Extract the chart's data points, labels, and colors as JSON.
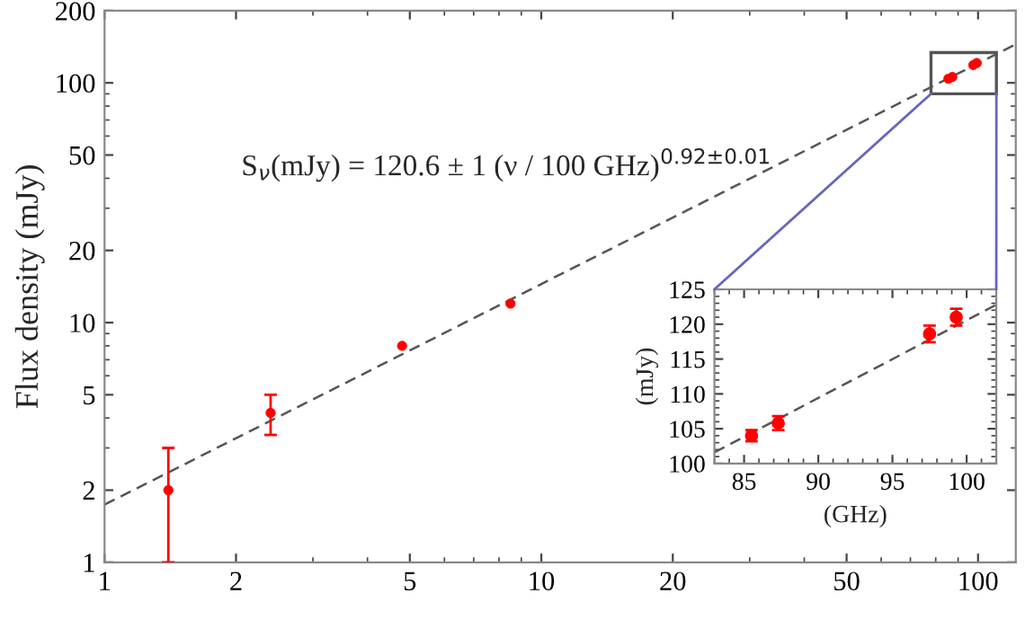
{
  "chart_data": [
    {
      "type": "scatter",
      "ylabel": "Flux density (mJy)",
      "log": "xy",
      "xlim": [
        1,
        122
      ],
      "ylim": [
        1,
        200
      ],
      "xticks": [
        1,
        2,
        5,
        10,
        20,
        50,
        100
      ],
      "yticks": [
        1,
        2,
        5,
        10,
        20,
        50,
        100,
        200
      ],
      "grid": false,
      "legend": false,
      "annotations": [
        "S$_{ν}$(mJy) = 120.6 ± 1 (ν / 100 GHz)$^{0.92±0.01}$"
      ],
      "series": [
        {
          "color": "#ff0000",
          "marker": "circle",
          "x": [
            1.4,
            2.4,
            4.8,
            8.5,
            85.5,
            87.3,
            97.5,
            99.3
          ],
          "values": [
            2,
            4.2,
            8,
            12,
            104,
            105.8,
            118.6,
            121
          ],
          "errors": [
            [
              1,
              3
            ],
            [
              3.4,
              5
            ],
            null,
            null,
            null,
            null,
            null,
            null
          ]
        },
        {
          "type": "line",
          "color": "#555555",
          "line_style": "dashed",
          "marker": "none",
          "x": [
            1,
            122
          ],
          "values": [
            1.74,
            144.8
          ]
        }
      ]
    },
    {
      "type": "scatter",
      "xlabel": "(GHz)",
      "ylabel": "(mJy)",
      "xlim": [
        83,
        102
      ],
      "ylim": [
        100,
        125
      ],
      "xticks": [
        85,
        90,
        95,
        100
      ],
      "yticks": [
        100,
        105,
        110,
        115,
        120,
        125
      ],
      "grid": false,
      "legend": false,
      "series": [
        {
          "color": "#ff0000",
          "marker": "circle",
          "x": [
            85.5,
            87.3,
            97.5,
            99.3
          ],
          "values": [
            104,
            105.8,
            118.6,
            121
          ],
          "errors": [
            0.8,
            1,
            1.2,
            1.2
          ]
        },
        {
          "type": "line",
          "color": "#555555",
          "line_style": "dashed",
          "marker": "none",
          "x": [
            83,
            102
          ],
          "values": [
            101.6,
            122.8
          ]
        }
      ]
    }
  ]
}
